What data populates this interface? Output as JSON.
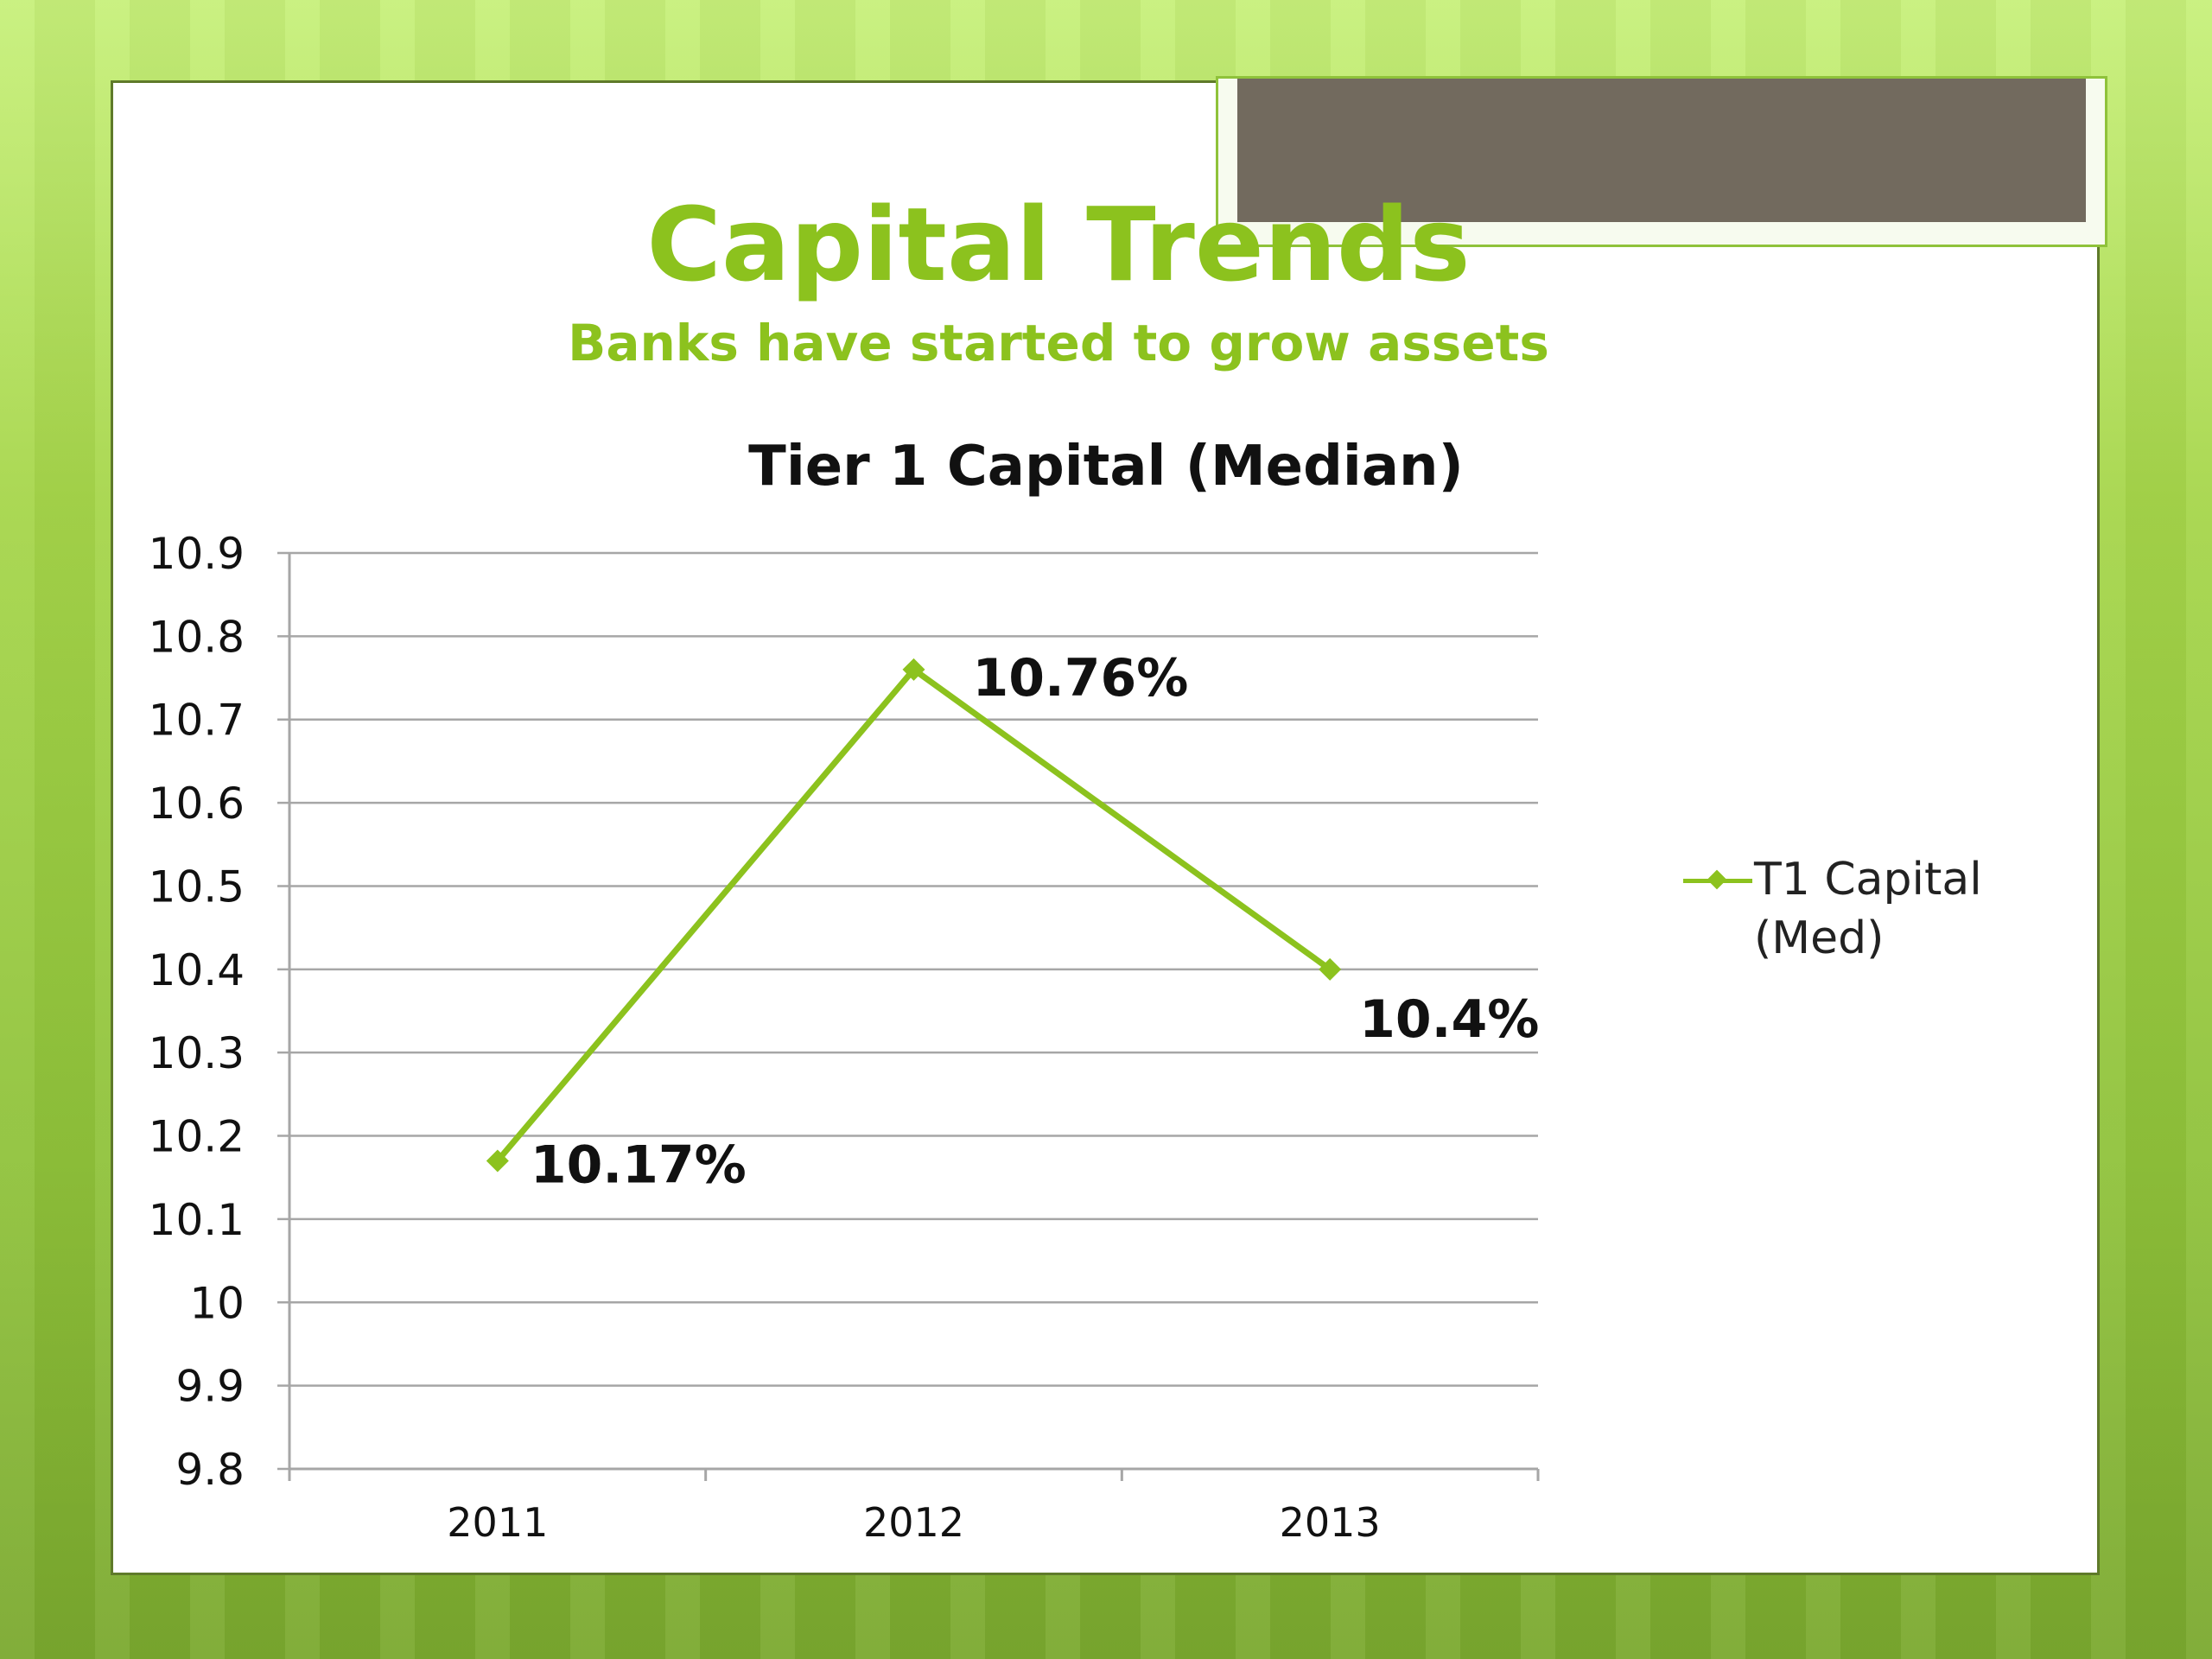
{
  "slide": {
    "title": "Capital Trends",
    "subtitle": "Banks have started to grow assets"
  },
  "colors": {
    "accent": "#8cc21e",
    "photo": "#726a5e",
    "gridline": "#a6a6a6",
    "text": "#111111"
  },
  "chart_data": {
    "type": "line",
    "title": "Tier 1 Capital (Median)",
    "xlabel": "",
    "ylabel": "",
    "categories": [
      "2011",
      "2012",
      "2013"
    ],
    "series": [
      {
        "name": "T1 Capital (Med)",
        "values": [
          10.17,
          10.76,
          10.4
        ],
        "labels": [
          "10.17%",
          "10.76%",
          "10.4%"
        ]
      }
    ],
    "ylim": [
      9.8,
      10.9
    ],
    "yticks": [
      "10.9",
      "10.8",
      "10.7",
      "10.6",
      "10.5",
      "10.4",
      "10.3",
      "10.2",
      "10.1",
      "10",
      "9.9",
      "9.8"
    ],
    "grid": true,
    "legend": "right"
  }
}
